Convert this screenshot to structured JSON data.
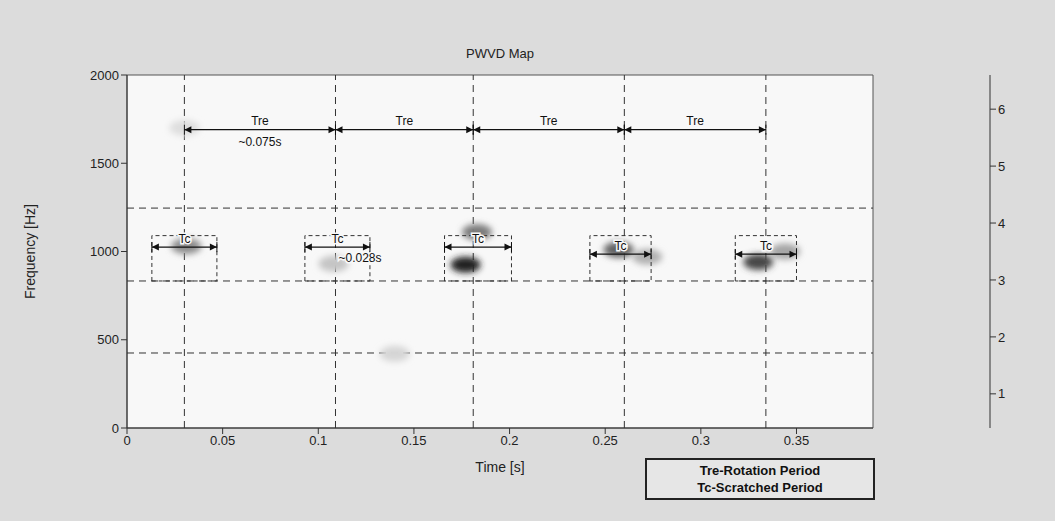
{
  "chart_data": {
    "type": "heatmap",
    "title": "PWVD Map",
    "x_label": "Time [s]",
    "y_label": "Frequency [Hz]",
    "xlim": [
      0,
      0.39
    ],
    "ylim": [
      0,
      2000
    ],
    "xticks": [
      0,
      0.05,
      0.1,
      0.15,
      0.2,
      0.25,
      0.3,
      0.35
    ],
    "yticks": [
      0,
      500,
      1000,
      1500,
      2000
    ],
    "colorbar": {
      "range": [
        0.4,
        6.6
      ],
      "ticks": [
        1,
        2,
        3,
        4,
        5,
        6
      ]
    },
    "spots": [
      {
        "time": 0.03,
        "frequency": 1700,
        "value": 1.2
      },
      {
        "time": 0.14,
        "frequency": 420,
        "value": 1.4
      },
      {
        "time": 0.108,
        "frequency": 930,
        "value": 1.8
      },
      {
        "time": 0.272,
        "frequency": 970,
        "value": 2.3
      },
      {
        "time": 0.344,
        "frequency": 1000,
        "value": 2.6
      },
      {
        "time": 0.031,
        "frequency": 1030,
        "value": 3.2
      },
      {
        "time": 0.183,
        "frequency": 1110,
        "value": 3.6
      },
      {
        "time": 0.257,
        "frequency": 1010,
        "value": 4.2
      },
      {
        "time": 0.33,
        "frequency": 940,
        "value": 4.9
      },
      {
        "time": 0.177,
        "frequency": 925,
        "value": 5.8
      }
    ],
    "time_marks": [
      0.03,
      0.109,
      0.181,
      0.26,
      0.334
    ],
    "frequency_marks": [
      1246,
      833,
      425
    ],
    "rotation_period": {
      "label": "Tre",
      "value_label": "~0.075s",
      "frequency": 1690
    },
    "scratched_periods": {
      "label": "Tc",
      "value_label": "~0.028s",
      "boxes": [
        {
          "x": [
            0.013,
            0.047
          ],
          "y": [
            833,
            1090
          ],
          "arrow_frequency": 1025
        },
        {
          "x": [
            0.093,
            0.127
          ],
          "y": [
            833,
            1090
          ],
          "arrow_frequency": 1025
        },
        {
          "x": [
            0.166,
            0.201
          ],
          "y": [
            833,
            1090
          ],
          "arrow_frequency": 1025
        },
        {
          "x": [
            0.242,
            0.274
          ],
          "y": [
            833,
            1090
          ],
          "arrow_frequency": 985
        },
        {
          "x": [
            0.318,
            0.35
          ],
          "y": [
            833,
            1090
          ],
          "arrow_frequency": 985
        }
      ]
    },
    "key": [
      "Tre-Rotation Period",
      "Tc-Scratched Period"
    ]
  }
}
